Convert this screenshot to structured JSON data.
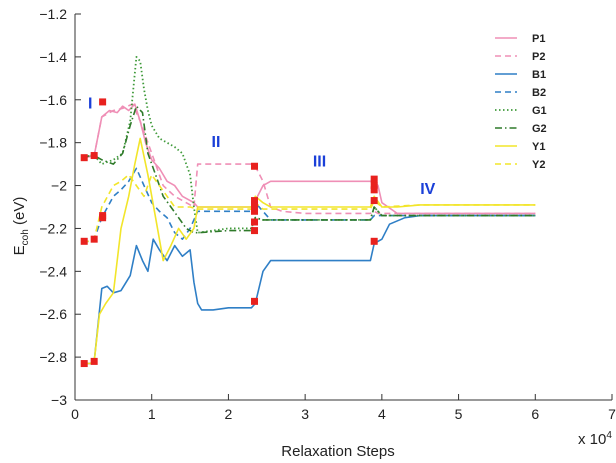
{
  "chart_data": {
    "type": "line",
    "xlabel": "Relaxation Steps",
    "ylabel_main": "E",
    "ylabel_sub": "coh",
    "ylabel_unit": " (eV)",
    "x_multiplier": "x 10",
    "x_multiplier_exp": "4",
    "xlim": [
      0,
      7
    ],
    "ylim": [
      -3,
      -1.2
    ],
    "x_ticks": [
      0,
      1,
      2,
      3,
      4,
      5,
      6,
      7
    ],
    "y_ticks": [
      -3,
      -2.8,
      -2.6,
      -2.4,
      -2.2,
      -2,
      -1.8,
      -1.6,
      -1.4,
      -1.2
    ],
    "region_labels": [
      {
        "text": "I",
        "x": 0.17,
        "y": -1.64
      },
      {
        "text": "II",
        "x": 1.78,
        "y": -1.82
      },
      {
        "text": "III",
        "x": 3.1,
        "y": -1.91
      },
      {
        "text": "IV",
        "x": 4.5,
        "y": -2.04
      }
    ],
    "region_color": "#1a3fd8",
    "marker_color": "#e8211e",
    "series": [
      {
        "name": "P1",
        "color": "#ef8fb6",
        "dash": "solid",
        "width": 1.6,
        "x": [
          0.1,
          0.2,
          0.25,
          0.35,
          0.45,
          0.55,
          0.62,
          0.7,
          0.78,
          0.85,
          0.92,
          1.0,
          1.1,
          1.2,
          1.3,
          1.4,
          1.5,
          1.55,
          1.6,
          1.7,
          2.0,
          2.3,
          2.35,
          2.45,
          2.55,
          3.0,
          3.5,
          3.85,
          3.9,
          3.95,
          4.0,
          4.2,
          4.5,
          5.0,
          6.0
        ],
        "y": [
          -1.87,
          -1.865,
          -1.86,
          -1.68,
          -1.65,
          -1.66,
          -1.63,
          -1.65,
          -1.62,
          -1.7,
          -1.8,
          -1.88,
          -1.92,
          -1.98,
          -2.0,
          -2.05,
          -2.07,
          -2.08,
          -2.1,
          -2.1,
          -2.1,
          -2.1,
          -2.07,
          -2.0,
          -1.98,
          -1.98,
          -1.98,
          -1.98,
          -1.97,
          -2.0,
          -2.08,
          -2.13,
          -2.13,
          -2.13,
          -2.13
        ]
      },
      {
        "name": "P2",
        "color": "#ef8fb6",
        "dash": "6,4",
        "width": 1.6,
        "x": [
          0.1,
          0.2,
          0.25,
          0.35,
          0.5,
          0.62,
          0.75,
          0.85,
          0.95,
          1.05,
          1.15,
          1.3,
          1.45,
          1.55,
          1.6,
          2.0,
          2.3,
          2.35,
          2.45,
          2.55,
          2.7,
          3.0,
          3.5,
          3.85,
          3.9,
          3.95,
          4.05,
          4.5,
          5.0,
          6.0
        ],
        "y": [
          -1.87,
          -1.865,
          -1.86,
          -1.68,
          -1.65,
          -1.64,
          -1.62,
          -1.7,
          -1.8,
          -1.9,
          -2.0,
          -2.05,
          -2.08,
          -2.1,
          -1.9,
          -1.9,
          -1.9,
          -1.91,
          -1.98,
          -2.1,
          -2.12,
          -2.13,
          -2.13,
          -2.13,
          -2.12,
          -2.13,
          -2.13,
          -2.13,
          -2.13,
          -2.13
        ]
      },
      {
        "name": "B1",
        "color": "#2f7fc6",
        "dash": "solid",
        "width": 1.6,
        "x": [
          0.1,
          0.2,
          0.25,
          0.35,
          0.42,
          0.5,
          0.6,
          0.72,
          0.8,
          0.88,
          0.95,
          1.02,
          1.1,
          1.2,
          1.3,
          1.4,
          1.5,
          1.55,
          1.6,
          1.65,
          1.8,
          2.0,
          2.3,
          2.35,
          2.45,
          2.55,
          3.0,
          3.5,
          3.85,
          3.9,
          4.0,
          4.1,
          4.3,
          4.5,
          5.0,
          6.0
        ],
        "y": [
          -2.83,
          -2.83,
          -2.82,
          -2.48,
          -2.47,
          -2.5,
          -2.49,
          -2.42,
          -2.28,
          -2.35,
          -2.4,
          -2.25,
          -2.3,
          -2.35,
          -2.28,
          -2.33,
          -2.3,
          -2.45,
          -2.55,
          -2.58,
          -2.58,
          -2.57,
          -2.57,
          -2.55,
          -2.4,
          -2.35,
          -2.35,
          -2.35,
          -2.35,
          -2.27,
          -2.25,
          -2.18,
          -2.15,
          -2.14,
          -2.14,
          -2.14
        ]
      },
      {
        "name": "B2",
        "color": "#2f7fc6",
        "dash": "6,4",
        "width": 1.6,
        "x": [
          0.1,
          0.2,
          0.25,
          0.35,
          0.5,
          0.6,
          0.7,
          0.8,
          0.9,
          1.0,
          1.1,
          1.2,
          1.3,
          1.4,
          1.5,
          1.6,
          1.8,
          2.0,
          2.3,
          2.35,
          2.45,
          2.55,
          3.0,
          3.5,
          3.85,
          3.9,
          4.0,
          4.1,
          4.5,
          5.0,
          6.0
        ],
        "y": [
          -2.26,
          -2.26,
          -2.25,
          -2.15,
          -2.05,
          -2.02,
          -1.98,
          -1.92,
          -2.0,
          -2.08,
          -2.12,
          -2.15,
          -2.22,
          -2.25,
          -2.2,
          -2.12,
          -2.12,
          -2.12,
          -2.12,
          -2.08,
          -2.12,
          -2.16,
          -2.16,
          -2.16,
          -2.16,
          -2.14,
          -2.14,
          -2.14,
          -2.14,
          -2.14,
          -2.14
        ]
      },
      {
        "name": "G1",
        "color": "#3f9a3a",
        "dash": "1.5,2.5",
        "width": 1.8,
        "x": [
          0.1,
          0.2,
          0.25,
          0.35,
          0.5,
          0.62,
          0.72,
          0.8,
          0.85,
          0.9,
          0.95,
          1.0,
          1.1,
          1.2,
          1.3,
          1.4,
          1.5,
          1.55,
          1.6,
          2.0,
          2.3,
          2.35,
          2.45,
          2.55,
          3.0,
          3.5,
          3.85,
          3.9,
          4.0,
          4.5,
          5.0,
          6.0
        ],
        "y": [
          -1.87,
          -1.86,
          -1.86,
          -1.9,
          -1.88,
          -1.85,
          -1.7,
          -1.4,
          -1.42,
          -1.55,
          -1.65,
          -1.72,
          -1.78,
          -1.8,
          -1.82,
          -1.85,
          -1.95,
          -2.1,
          -2.22,
          -2.2,
          -2.2,
          -2.15,
          -2.16,
          -2.16,
          -2.16,
          -2.16,
          -2.16,
          -2.1,
          -2.14,
          -2.14,
          -2.14,
          -2.14
        ]
      },
      {
        "name": "G2",
        "color": "#2f7a2a",
        "dash": "7,3,1.5,3",
        "width": 1.6,
        "x": [
          0.1,
          0.2,
          0.25,
          0.35,
          0.5,
          0.62,
          0.72,
          0.8,
          0.88,
          0.95,
          1.05,
          1.15,
          1.25,
          1.35,
          1.45,
          1.55,
          1.6,
          2.0,
          2.3,
          2.35,
          2.45,
          2.55,
          3.0,
          3.5,
          3.85,
          3.9,
          4.0,
          4.5,
          5.0,
          6.0
        ],
        "y": [
          -1.87,
          -1.86,
          -1.86,
          -1.88,
          -1.9,
          -1.85,
          -1.72,
          -1.63,
          -1.66,
          -1.85,
          -1.95,
          -2.05,
          -2.1,
          -2.15,
          -2.2,
          -2.22,
          -2.22,
          -2.21,
          -2.21,
          -2.15,
          -2.16,
          -2.16,
          -2.16,
          -2.16,
          -2.16,
          -2.1,
          -2.14,
          -2.14,
          -2.14,
          -2.14
        ]
      },
      {
        "name": "Y1",
        "color": "#f2e52a",
        "dash": "solid",
        "width": 1.6,
        "x": [
          0.1,
          0.2,
          0.25,
          0.32,
          0.4,
          0.5,
          0.6,
          0.7,
          0.78,
          0.85,
          0.95,
          1.05,
          1.15,
          1.25,
          1.35,
          1.45,
          1.55,
          1.6,
          2.0,
          2.3,
          2.35,
          2.45,
          2.55,
          3.0,
          3.5,
          3.85,
          3.9,
          4.0,
          4.2,
          4.5,
          5.0,
          6.0
        ],
        "y": [
          -2.83,
          -2.83,
          -2.82,
          -2.6,
          -2.55,
          -2.5,
          -2.2,
          -2.05,
          -1.9,
          -1.78,
          -1.95,
          -2.15,
          -2.35,
          -2.28,
          -2.2,
          -2.25,
          -2.2,
          -2.1,
          -2.1,
          -2.1,
          -2.05,
          -2.08,
          -2.1,
          -2.1,
          -2.1,
          -2.1,
          -2.05,
          -2.1,
          -2.1,
          -2.09,
          -2.09,
          -2.09
        ]
      },
      {
        "name": "Y2",
        "color": "#f2e52a",
        "dash": "6,4",
        "width": 1.6,
        "x": [
          0.1,
          0.2,
          0.25,
          0.35,
          0.5,
          0.6,
          0.7,
          0.8,
          0.9,
          1.0,
          1.1,
          1.2,
          1.3,
          1.4,
          1.5,
          1.6,
          2.0,
          2.3,
          2.35,
          2.45,
          2.55,
          3.0,
          3.5,
          3.85,
          3.9,
          4.0,
          4.5,
          5.0,
          6.0
        ],
        "y": [
          -2.26,
          -2.26,
          -2.25,
          -2.1,
          -2.0,
          -1.98,
          -1.95,
          -2.0,
          -2.05,
          -1.95,
          -2.0,
          -2.05,
          -2.1,
          -2.1,
          -2.1,
          -2.11,
          -2.11,
          -2.11,
          -2.08,
          -2.11,
          -2.11,
          -2.11,
          -2.11,
          -2.11,
          -2.07,
          -2.1,
          -2.09,
          -2.09,
          -2.09
        ]
      }
    ],
    "markers": [
      {
        "x": 0.12,
        "y": -1.87
      },
      {
        "x": 0.25,
        "y": -1.86
      },
      {
        "x": 0.36,
        "y": -1.61
      },
      {
        "x": 0.12,
        "y": -2.26
      },
      {
        "x": 0.25,
        "y": -2.25
      },
      {
        "x": 0.36,
        "y": -2.14
      },
      {
        "x": 0.12,
        "y": -2.83
      },
      {
        "x": 0.25,
        "y": -2.82
      },
      {
        "x": 0.36,
        "y": -2.15
      },
      {
        "x": 2.34,
        "y": -1.91
      },
      {
        "x": 2.34,
        "y": -2.07
      },
      {
        "x": 2.34,
        "y": -2.09
      },
      {
        "x": 2.34,
        "y": -2.12
      },
      {
        "x": 2.34,
        "y": -2.17
      },
      {
        "x": 2.34,
        "y": -2.21
      },
      {
        "x": 2.34,
        "y": -2.54
      },
      {
        "x": 3.9,
        "y": -1.97
      },
      {
        "x": 3.9,
        "y": -2.0
      },
      {
        "x": 3.9,
        "y": -2.02
      },
      {
        "x": 3.9,
        "y": -2.07
      },
      {
        "x": 3.9,
        "y": -2.26
      }
    ]
  }
}
